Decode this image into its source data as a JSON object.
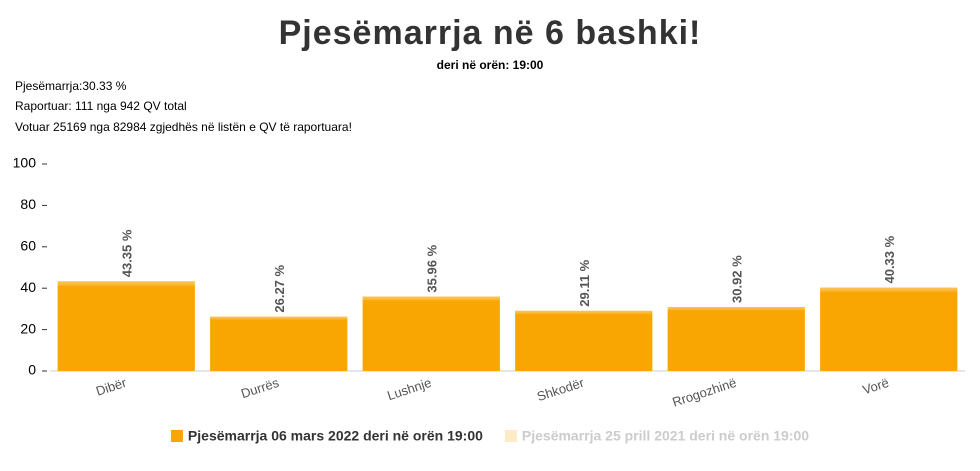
{
  "chart_data": {
    "type": "bar",
    "title": "Pjesëmarrja në 6 bashki!",
    "subtitle": "deri në orën: 19:00",
    "notes": [
      "Pjesëmarrja:30.33 %",
      "Raportuar: 111 nga 942 QV total",
      "Votuar 25169 nga 82984 zgjedhës në listën e QV të raportuara!"
    ],
    "categories": [
      "Dibër",
      "Durrës",
      "Lushnje",
      "Shkodër",
      "Rrogozhinë",
      "Vorë"
    ],
    "series": [
      {
        "name": "Pjesëmarrja 06 mars 2022 deri në orën 19:00",
        "color": "#f9a602",
        "visible": true,
        "values": [
          43.35,
          26.27,
          35.96,
          29.11,
          30.92,
          40.33
        ],
        "value_labels": [
          "43.35 %",
          "26.27 %",
          "35.96 %",
          "29.11 %",
          "30.92 %",
          "40.33 %"
        ]
      },
      {
        "name": "Pjesëmarrja 25 prill 2021 deri në orën 19:00",
        "color": "#fcebc6",
        "visible": false,
        "values": [
          null,
          null,
          null,
          null,
          null,
          null
        ]
      }
    ],
    "ylim": [
      0,
      100
    ],
    "yticks": [
      0,
      20,
      40,
      60,
      80,
      100
    ],
    "grid": false
  }
}
